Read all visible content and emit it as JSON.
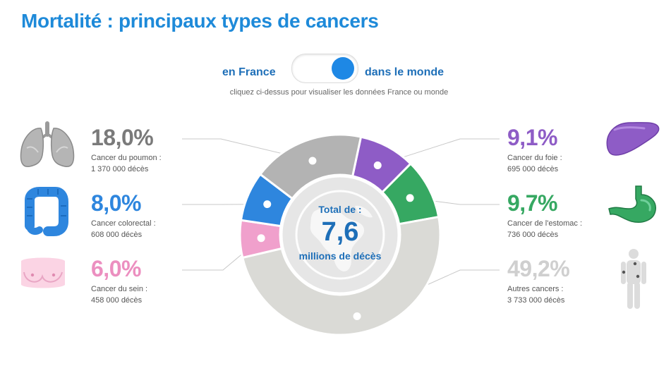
{
  "title": "Mortalité : principaux types de cancers",
  "toggle": {
    "left_label": "en France",
    "right_label": "dans le monde",
    "selected": "dans le monde",
    "hint": "cliquez ci-dessus pour visualiser les données France ou monde"
  },
  "center": {
    "total_label": "Total de :",
    "total_value": "7,6",
    "total_unit": "millions de décès"
  },
  "stats": {
    "poumon": {
      "pct": "18,0%",
      "label": "Cancer du poumon :",
      "value": "1 370 000 décès"
    },
    "colorectal": {
      "pct": "8,0%",
      "label": "Cancer colorectal :",
      "value": "608 000 décès"
    },
    "sein": {
      "pct": "6,0%",
      "label": "Cancer du sein :",
      "value": "458 000 décès"
    },
    "foie": {
      "pct": "9,1%",
      "label": "Cancer du foie :",
      "value": "695 000 décès"
    },
    "estomac": {
      "pct": "9,7%",
      "label": "Cancer de l'estomac :",
      "value": "736 000 décès"
    },
    "autres": {
      "pct": "49,2%",
      "label": "Autres cancers :",
      "value": "3 733 000 décès"
    }
  },
  "colors": {
    "title": "#1e8ad9",
    "poumon": "#b3b3b3",
    "colorectal": "#2e86de",
    "sein": "#f0a0cc",
    "foie": "#8e5cc6",
    "estomac": "#36a862",
    "autres": "#dadad6",
    "center": "#e6e6e6"
  },
  "chart_data": {
    "type": "pie",
    "title": "Mortalité : principaux types de cancers",
    "total": "7,6 millions de décès",
    "slices": [
      {
        "key": "foie",
        "name": "Cancer du foie",
        "value": 9.1
      },
      {
        "key": "estomac",
        "name": "Cancer de l'estomac",
        "value": 9.7
      },
      {
        "key": "autres",
        "name": "Autres cancers",
        "value": 49.2
      },
      {
        "key": "sein",
        "name": "Cancer du sein",
        "value": 6.0
      },
      {
        "key": "colorectal",
        "name": "Cancer colorectal",
        "value": 8.0
      },
      {
        "key": "poumon",
        "name": "Cancer du poumon",
        "value": 18.0
      }
    ],
    "start_angle_deg": 12,
    "direction": "clockwise"
  }
}
